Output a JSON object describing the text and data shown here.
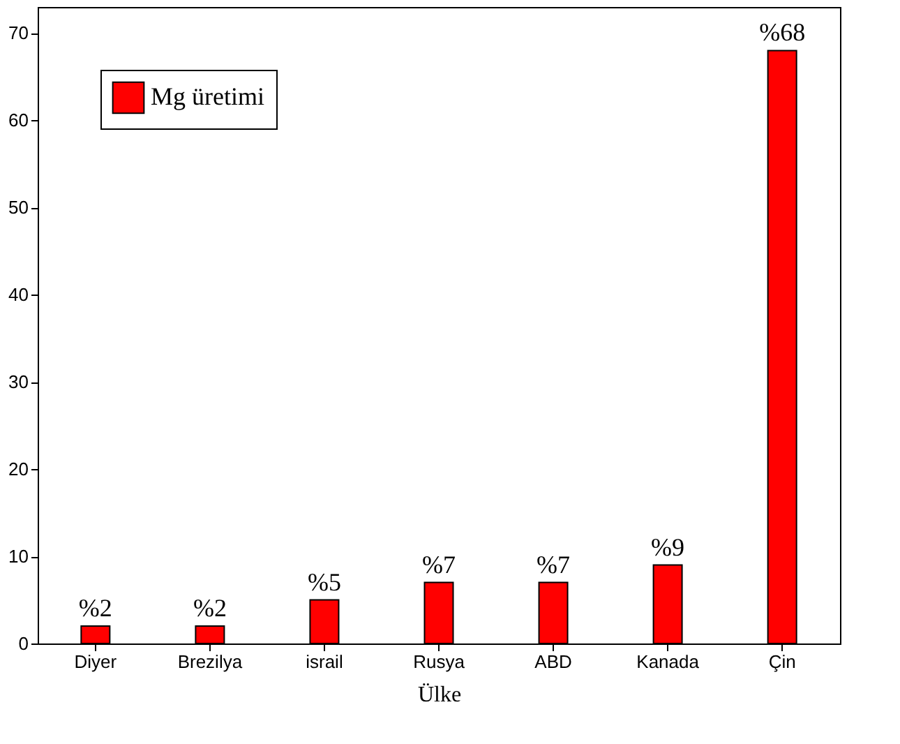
{
  "chart_data": {
    "type": "bar",
    "xlabel": "Ülke",
    "categories": [
      "Diyer",
      "Brezilya",
      "israil",
      "Rusya",
      "ABD",
      "Kanada",
      "Çin"
    ],
    "series": [
      {
        "name": "Mg üretimi",
        "color": "#ff0000",
        "values": [
          2,
          2,
          5,
          7,
          7,
          9,
          68
        ],
        "value_labels": [
          "%2",
          "%2",
          "%5",
          "%7",
          "%7",
          "%9",
          "%68"
        ]
      }
    ],
    "ylim": [
      0,
      73
    ],
    "yticks": [
      0,
      10,
      20,
      30,
      40,
      50,
      60,
      70
    ],
    "grid": false,
    "legend": "top left"
  }
}
